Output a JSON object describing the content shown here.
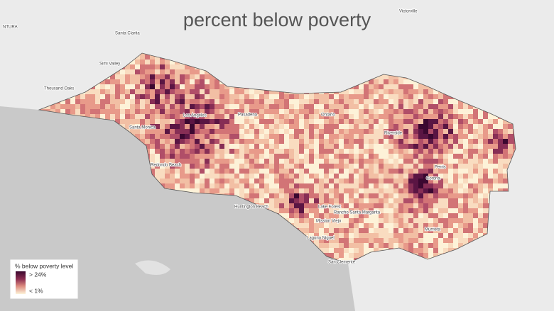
{
  "title": "percent below poverty",
  "legend": {
    "title": "% below poverty level",
    "high": "> 24%",
    "low": "< 1%"
  },
  "places": [
    "NTURA",
    "Santa Clarita",
    "Victorville",
    "Simi Valley",
    "Thousand Oaks",
    "Santa Monica",
    "Los Angeles",
    "Redondo Beach",
    "Huntington Beach",
    "Lake Forest",
    "Rancho Santa Margarita",
    "Mission Viejo",
    "Laguna Niguel",
    "San Clemente",
    "Riverside",
    "Corona",
    "Murrieta",
    "Pasadena",
    "Ontario",
    "Perris"
  ]
}
